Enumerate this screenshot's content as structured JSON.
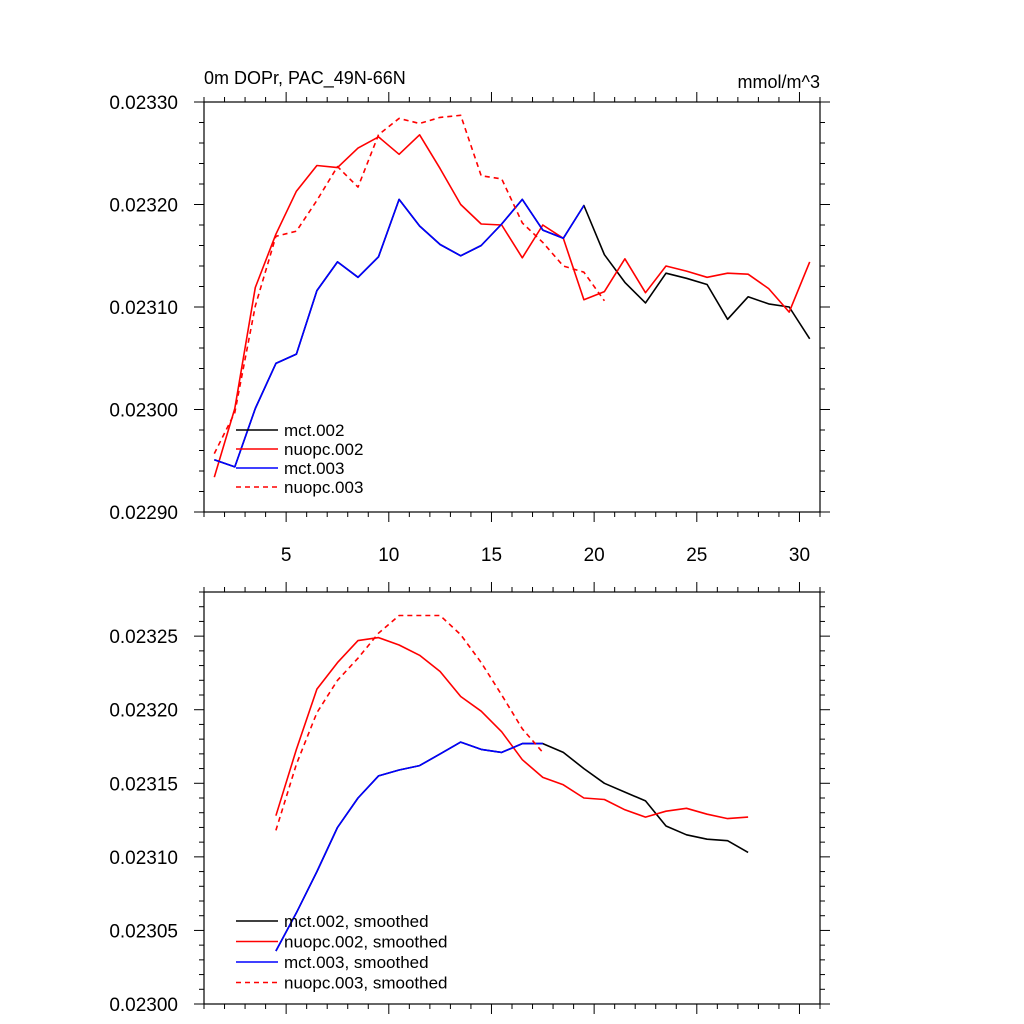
{
  "chart_data": [
    {
      "type": "line",
      "title": "0m DOPr, PAC_49N-66N",
      "units": "mmol/m^3",
      "ylim": [
        0.0229,
        0.0233
      ],
      "yticks": [
        "0.02290",
        "0.02300",
        "0.02310",
        "0.02320",
        "0.02330"
      ],
      "xlim": [
        1,
        31
      ],
      "xticks": [
        "5",
        "10",
        "15",
        "20",
        "25",
        "30"
      ],
      "series": [
        {
          "name": "mct.002",
          "color": "#000000",
          "dash": "solid",
          "x": [
            1.5,
            2.5,
            3.5,
            4.5,
            5.5,
            6.5,
            7.5,
            8.5,
            9.5,
            10.5,
            11.5,
            12.5,
            13.5,
            14.5,
            15.5,
            16.5,
            17.5,
            18.5,
            19.5,
            20.5,
            21.5,
            22.5,
            23.5,
            24.5,
            25.5,
            26.5,
            27.5,
            28.5,
            29.5,
            30.5
          ],
          "values": [
            0.022951,
            0.022944,
            0.023001,
            0.023045,
            0.023054,
            0.023116,
            0.023144,
            0.023129,
            0.023149,
            0.023205,
            0.023179,
            0.023161,
            0.02315,
            0.02316,
            0.023181,
            0.023205,
            0.023175,
            0.023167,
            0.023199,
            0.023151,
            0.023124,
            0.023104,
            0.023133,
            0.023128,
            0.023122,
            0.023088,
            0.02311,
            0.023103,
            0.0231,
            0.023069
          ]
        },
        {
          "name": "nuopc.002",
          "color": "#ff0000",
          "dash": "solid",
          "x": [
            1.5,
            2.5,
            3.5,
            4.5,
            5.5,
            6.5,
            7.5,
            8.5,
            9.5,
            10.5,
            11.5,
            12.5,
            13.5,
            14.5,
            15.5,
            16.5,
            17.5,
            18.5,
            19.5,
            20.5,
            21.5,
            22.5,
            23.5,
            24.5,
            25.5,
            26.5,
            27.5,
            28.5,
            29.5,
            30.5
          ],
          "values": [
            0.022934,
            0.023001,
            0.023119,
            0.023171,
            0.023213,
            0.023238,
            0.023236,
            0.023255,
            0.023266,
            0.023249,
            0.023268,
            0.023235,
            0.0232,
            0.023181,
            0.02318,
            0.023148,
            0.02318,
            0.023167,
            0.023107,
            0.023115,
            0.023147,
            0.023114,
            0.02314,
            0.023135,
            0.023129,
            0.023133,
            0.023132,
            0.023118,
            0.023095,
            0.023144
          ]
        },
        {
          "name": "mct.003",
          "color": "#0000ff",
          "dash": "solid",
          "x": [
            1.5,
            2.5,
            3.5,
            4.5,
            5.5,
            6.5,
            7.5,
            8.5,
            9.5,
            10.5,
            11.5,
            12.5,
            13.5,
            14.5,
            15.5,
            16.5,
            17.5,
            18.5,
            19.5
          ],
          "values": [
            0.022951,
            0.022944,
            0.023001,
            0.023045,
            0.023054,
            0.023116,
            0.023144,
            0.023129,
            0.023149,
            0.023205,
            0.023179,
            0.023161,
            0.02315,
            0.02316,
            0.023181,
            0.023205,
            0.023175,
            0.023167,
            0.023199
          ]
        },
        {
          "name": "nuopc.003",
          "color": "#ff0000",
          "dash": "dashed",
          "x": [
            1.5,
            2.5,
            3.5,
            4.5,
            5.5,
            6.5,
            7.5,
            8.5,
            9.5,
            10.5,
            11.5,
            12.5,
            13.5,
            14.5,
            15.5,
            16.5,
            17.5,
            18.5,
            19.5,
            20.5
          ],
          "values": [
            0.022957,
            0.022997,
            0.023101,
            0.023169,
            0.023174,
            0.023204,
            0.023237,
            0.023217,
            0.023268,
            0.023284,
            0.023279,
            0.023285,
            0.023287,
            0.023228,
            0.023225,
            0.023182,
            0.023163,
            0.02314,
            0.023134,
            0.023106
          ]
        }
      ]
    },
    {
      "type": "line",
      "ylim": [
        0.023,
        0.02328
      ],
      "yticks": [
        "0.02300",
        "0.02305",
        "0.02310",
        "0.02315",
        "0.02320",
        "0.02325"
      ],
      "xlim": [
        1,
        31
      ],
      "series": [
        {
          "name": "mct.002, smoothed",
          "color": "#000000",
          "dash": "solid",
          "x": [
            4.5,
            5.5,
            6.5,
            7.5,
            8.5,
            9.5,
            10.5,
            11.5,
            12.5,
            13.5,
            14.5,
            15.5,
            16.5,
            17.5,
            18.5,
            19.5,
            20.5,
            21.5,
            22.5,
            23.5,
            24.5,
            25.5,
            26.5,
            27.5
          ],
          "values": [
            0.023036,
            0.023062,
            0.02309,
            0.02312,
            0.02314,
            0.023155,
            0.023159,
            0.023162,
            0.02317,
            0.023178,
            0.023173,
            0.023171,
            0.023177,
            0.023177,
            0.023171,
            0.02316,
            0.02315,
            0.023144,
            0.023138,
            0.023121,
            0.023115,
            0.023112,
            0.023111,
            0.023103
          ]
        },
        {
          "name": "nuopc.002, smoothed",
          "color": "#ff0000",
          "dash": "solid",
          "x": [
            4.5,
            5.5,
            6.5,
            7.5,
            8.5,
            9.5,
            10.5,
            11.5,
            12.5,
            13.5,
            14.5,
            15.5,
            16.5,
            17.5,
            18.5,
            19.5,
            20.5,
            21.5,
            22.5,
            23.5,
            24.5,
            25.5,
            26.5,
            27.5
          ],
          "values": [
            0.023128,
            0.023173,
            0.023214,
            0.023232,
            0.023247,
            0.023249,
            0.023244,
            0.023237,
            0.023226,
            0.023209,
            0.023199,
            0.023185,
            0.023166,
            0.023154,
            0.023149,
            0.02314,
            0.023139,
            0.023132,
            0.023127,
            0.023131,
            0.023133,
            0.023129,
            0.023126,
            0.023127
          ]
        },
        {
          "name": "mct.003, smoothed",
          "color": "#0000ff",
          "dash": "solid",
          "x": [
            4.5,
            5.5,
            6.5,
            7.5,
            8.5,
            9.5,
            10.5,
            11.5,
            12.5,
            13.5,
            14.5,
            15.5,
            16.5,
            17.5
          ],
          "values": [
            0.023036,
            0.023062,
            0.02309,
            0.02312,
            0.02314,
            0.023155,
            0.023159,
            0.023162,
            0.02317,
            0.023178,
            0.023173,
            0.023171,
            0.023177,
            0.023177
          ]
        },
        {
          "name": "nuopc.003, smoothed",
          "color": "#ff0000",
          "dash": "dashed",
          "x": [
            4.5,
            5.5,
            6.5,
            7.5,
            8.5,
            9.5,
            10.5,
            11.5,
            12.5,
            13.5,
            14.5,
            15.5,
            16.5,
            17.5
          ],
          "values": [
            0.023118,
            0.023163,
            0.023198,
            0.02322,
            0.023235,
            0.023252,
            0.023264,
            0.023264,
            0.023264,
            0.023251,
            0.023232,
            0.02321,
            0.023187,
            0.023171
          ]
        }
      ]
    }
  ]
}
